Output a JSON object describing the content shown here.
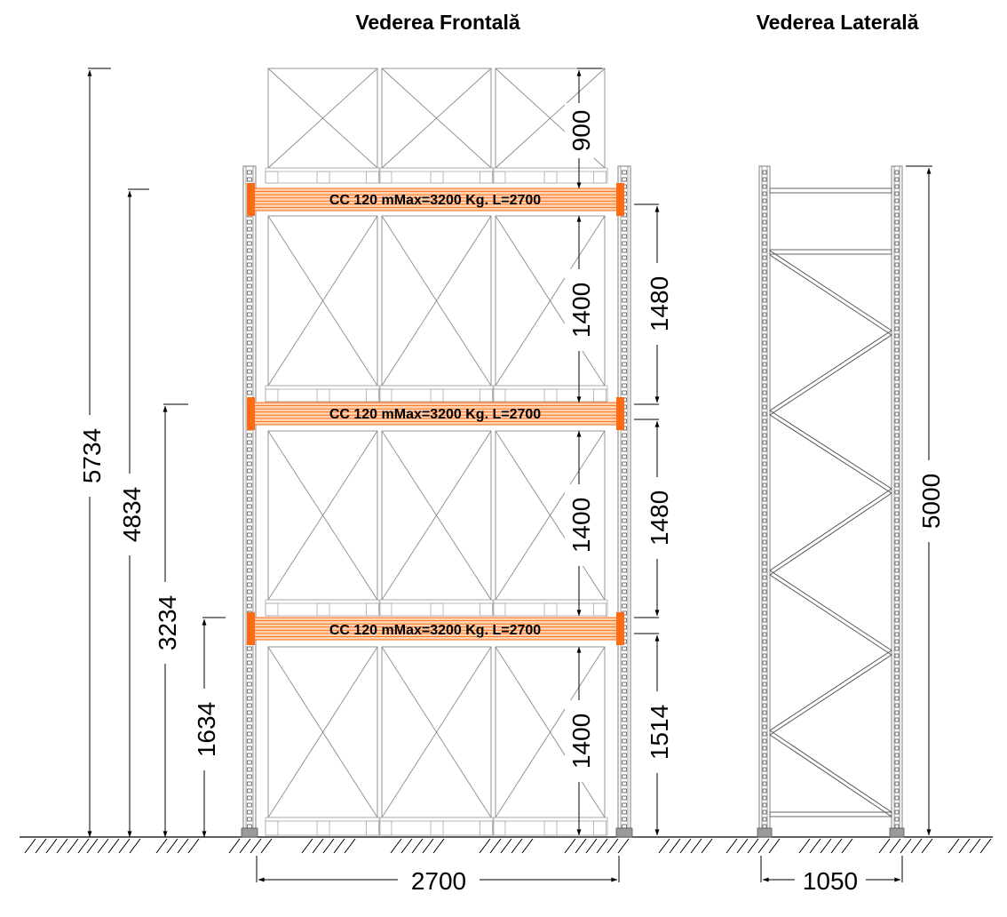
{
  "titles": {
    "front": "Vederea Frontală",
    "side": "Vederea Laterală"
  },
  "beam_label": "CC 120 mMax=3200 Kg. L=2700",
  "colors": {
    "beam": "#ff6a13",
    "beam_stripe": "#ffd2b0",
    "frame": "#7f7f7f",
    "line": "#000000"
  },
  "dimensions": {
    "overall_heights": [
      "5734",
      "4834",
      "3234",
      "1634"
    ],
    "top_load_height": "900",
    "load_heights": [
      "1400",
      "1400",
      "1400"
    ],
    "level_pitches": [
      "1480",
      "1480",
      "1514"
    ],
    "frame_height": "5000",
    "bay_width": "2700",
    "frame_depth": "1050"
  }
}
